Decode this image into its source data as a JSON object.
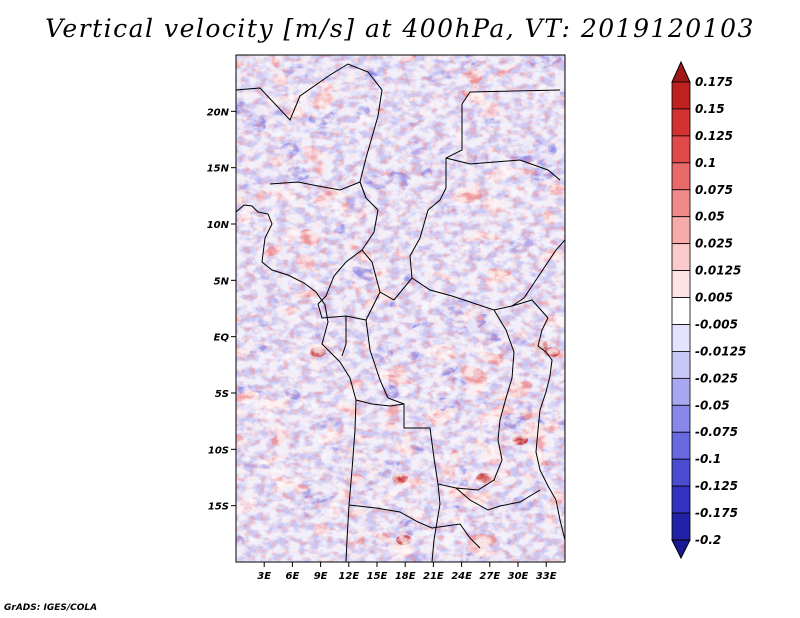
{
  "title": "Vertical velocity [m/s] at 400hPa, VT: 2019120103",
  "credit": "GrADS: IGES/COLA",
  "map": {
    "lon_range": [
      0,
      35
    ],
    "lat_range": [
      -20,
      25
    ],
    "lat_ticks": [
      {
        "value": 20,
        "label": "20N"
      },
      {
        "value": 15,
        "label": "15N"
      },
      {
        "value": 10,
        "label": "10N"
      },
      {
        "value": 5,
        "label": "5N"
      },
      {
        "value": 0,
        "label": "EQ"
      },
      {
        "value": -5,
        "label": "5S"
      },
      {
        "value": -10,
        "label": "10S"
      },
      {
        "value": -15,
        "label": "15S"
      }
    ],
    "lon_ticks": [
      {
        "value": 3,
        "label": "3E"
      },
      {
        "value": 6,
        "label": "6E"
      },
      {
        "value": 9,
        "label": "9E"
      },
      {
        "value": 12,
        "label": "12E"
      },
      {
        "value": 15,
        "label": "15E"
      },
      {
        "value": 18,
        "label": "18E"
      },
      {
        "value": 21,
        "label": "21E"
      },
      {
        "value": 24,
        "label": "24E"
      },
      {
        "value": 27,
        "label": "27E"
      },
      {
        "value": 30,
        "label": "30E"
      },
      {
        "value": 33,
        "label": "33E"
      }
    ]
  },
  "colorbar": {
    "levels": [
      {
        "label": "0.175",
        "color": "#a11616"
      },
      {
        "label": "0.15",
        "color": "#bf2121"
      },
      {
        "label": "0.125",
        "color": "#d33232"
      },
      {
        "label": "0.1",
        "color": "#e04a4a"
      },
      {
        "label": "0.075",
        "color": "#e86a6a"
      },
      {
        "label": "0.05",
        "color": "#f08a8a"
      },
      {
        "label": "0.025",
        "color": "#f6aaaa"
      },
      {
        "label": "0.0125",
        "color": "#fbcaca"
      },
      {
        "label": "0.005",
        "color": "#fde3e3"
      },
      {
        "label": "-0.005",
        "color": "#ffffff"
      },
      {
        "label": "-0.0125",
        "color": "#e3e3fd"
      },
      {
        "label": "-0.025",
        "color": "#c8c8f8"
      },
      {
        "label": "-0.05",
        "color": "#a8a8f2"
      },
      {
        "label": "-0.075",
        "color": "#8888ea"
      },
      {
        "label": "-0.1",
        "color": "#6a6ae0"
      },
      {
        "label": "-0.125",
        "color": "#4c4cd2"
      },
      {
        "label": "-0.175",
        "color": "#3232c0"
      },
      {
        "label": "-0.2",
        "color": "#2222a8"
      }
    ],
    "top_color": "#a11616",
    "bottom_color": "#1a1a96"
  }
}
